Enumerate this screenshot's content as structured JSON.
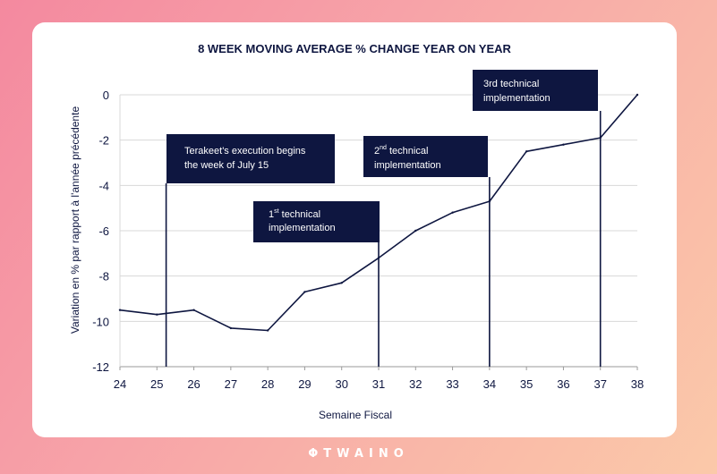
{
  "brand": {
    "logo_mark": "Φ",
    "name": "TWAINO"
  },
  "chart_data": {
    "type": "line",
    "title": "8 WEEK MOVING AVERAGE % CHANGE YEAR ON YEAR",
    "xlabel": "Semaine Fiscal",
    "ylabel": "Variation en % par rapport à l'année précédente",
    "xlim": [
      24,
      38
    ],
    "ylim": [
      -12,
      0
    ],
    "x_ticks": [
      "24",
      "25",
      "26",
      "27",
      "28",
      "29",
      "30",
      "31",
      "32",
      "33",
      "34",
      "35",
      "36",
      "37",
      "38"
    ],
    "y_ticks": [
      "0",
      "-2",
      "-4",
      "-6",
      "-8",
      "-10",
      "-12"
    ],
    "grid": true,
    "series": [
      {
        "name": "8 week moving average",
        "x": [
          24,
          25,
          26,
          27,
          28,
          29,
          30,
          31,
          32,
          33,
          34,
          35,
          36,
          37,
          38
        ],
        "values": [
          -9.5,
          -9.7,
          -9.5,
          -10.3,
          -10.4,
          -8.7,
          -8.3,
          -7.2,
          -6.0,
          -5.2,
          -4.7,
          -2.5,
          -2.2,
          -1.9,
          0.0
        ]
      }
    ],
    "annotations": [
      {
        "x": 25.25,
        "lines": [
          "Terakeet's execution begins",
          "the week of July 15"
        ],
        "sup": ""
      },
      {
        "x": 31,
        "lines": [
          "1",
          "technical",
          "implementation"
        ],
        "sup": "st"
      },
      {
        "x": 34,
        "lines": [
          "2",
          "technical",
          "implementation"
        ],
        "sup": "nd"
      },
      {
        "x": 37,
        "lines": [
          "3rd technical",
          "implementation"
        ],
        "sup": ""
      }
    ],
    "colors": {
      "line": "#0e1640",
      "annotation_bg": "#0e1640",
      "annotation_text": "#ffffff",
      "grid": "#d8d8d8"
    }
  }
}
